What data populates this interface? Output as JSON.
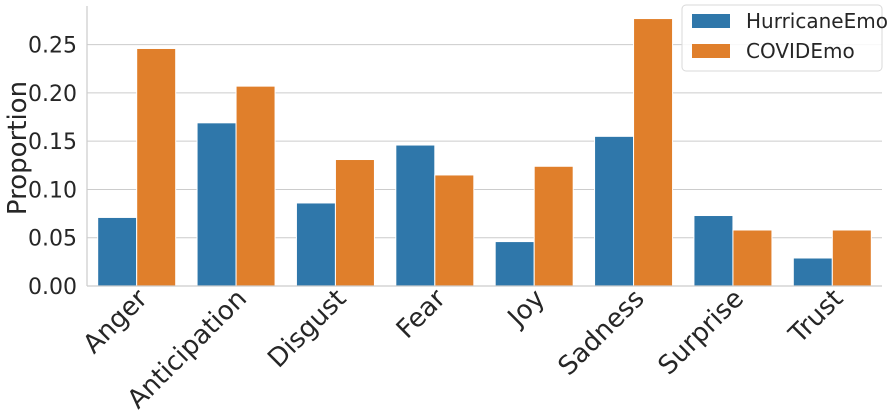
{
  "chart_data": {
    "type": "bar",
    "title": "",
    "xlabel": "",
    "ylabel": "Proportion",
    "ylim": [
      0,
      0.29
    ],
    "yticks": [
      "0.00",
      "0.05",
      "0.10",
      "0.15",
      "0.20",
      "0.25"
    ],
    "grid": "horizontal",
    "legend_position": "top-right",
    "categories": [
      "Anger",
      "Anticipation",
      "Disgust",
      "Fear",
      "Joy",
      "Sadness",
      "Surprise",
      "Trust"
    ],
    "series": [
      {
        "name": "HurricaneEmo",
        "color": "#2f77aa",
        "values": [
          0.071,
          0.169,
          0.086,
          0.146,
          0.046,
          0.155,
          0.073,
          0.029
        ]
      },
      {
        "name": "COVIDEmo",
        "color": "#e07f2b",
        "values": [
          0.246,
          0.207,
          0.131,
          0.115,
          0.124,
          0.277,
          0.058,
          0.058
        ]
      }
    ]
  }
}
